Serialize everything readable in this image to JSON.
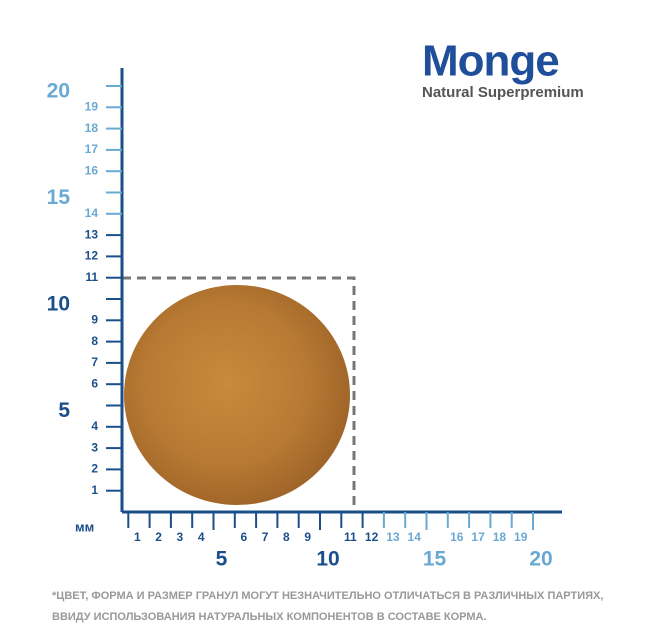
{
  "logo": {
    "brand": "Monge",
    "tagline": "Natural Superpremium"
  },
  "ruler": {
    "unit": "мм",
    "y_minor_labels": [
      1,
      2,
      3,
      4,
      6,
      7,
      8,
      9,
      11,
      12,
      13,
      14,
      16,
      17,
      18,
      19
    ],
    "y_major_labels": [
      5,
      10,
      15,
      20
    ],
    "x_minor_labels": [
      1,
      2,
      3,
      4,
      6,
      7,
      8,
      9,
      11,
      12,
      13,
      14,
      16,
      17,
      18,
      19
    ],
    "x_major_labels": [
      5,
      10,
      15,
      20
    ]
  },
  "footnote": {
    "line1": "*ЦВЕТ, ФОРМА И РАЗМЕР ГРАНУЛ МОГУТ НЕЗНАЧИТЕЛЬНО ОТЛИЧАТЬСЯ В РАЗЛИЧНЫХ ПАРТИЯХ,",
    "line2": "ВВИДУ ИСПОЛЬЗОВАНИЯ НАТУРАЛЬНЫХ КОМПОНЕНТОВ В СОСТАВЕ КОРМА."
  }
}
